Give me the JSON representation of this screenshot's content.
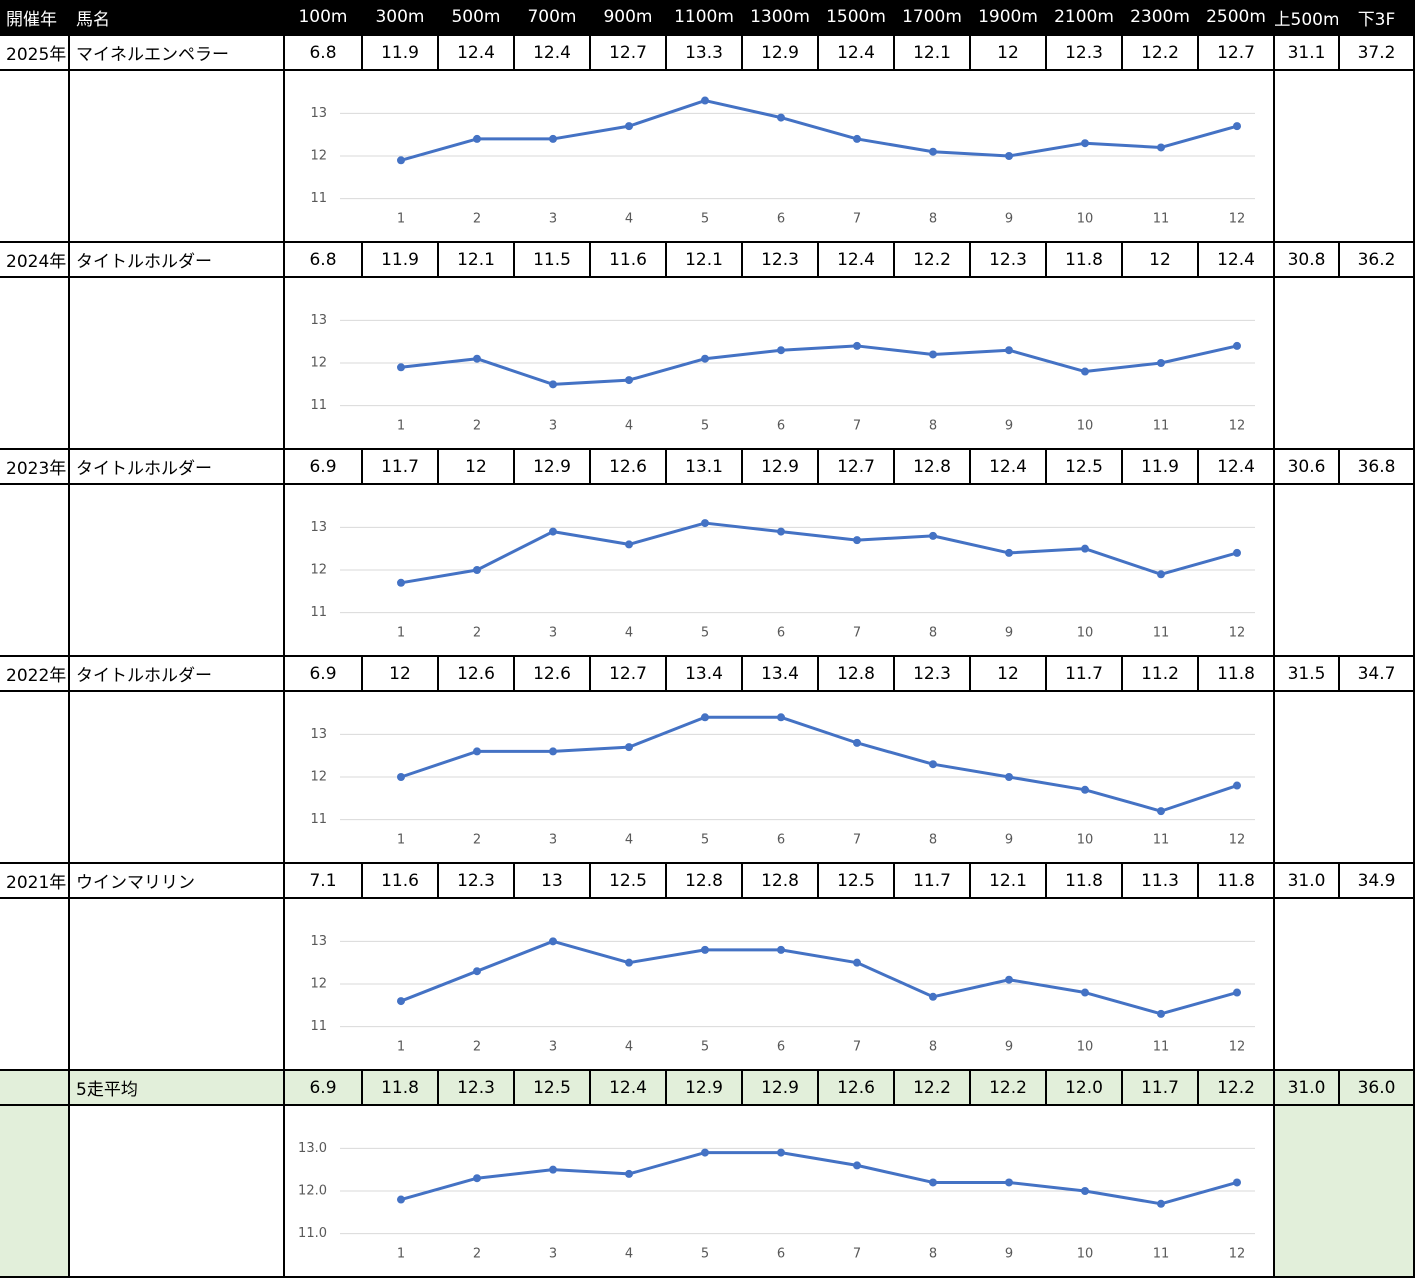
{
  "table": {
    "header": [
      "開催年",
      "馬名",
      "100m",
      "300m",
      "500m",
      "700m",
      "900m",
      "1100m",
      "1300m",
      "1500m",
      "1700m",
      "1900m",
      "2100m",
      "2300m",
      "2500m",
      "上500m",
      "下3F"
    ],
    "blocks": [
      {
        "year": "2025年",
        "horse": "マイネルエンペラー",
        "splits": [
          6.8,
          11.9,
          12.4,
          12.4,
          12.7,
          13.3,
          12.9,
          12.4,
          12.1,
          12,
          12.3,
          12.2,
          12.7
        ],
        "first500": 31.1,
        "last3f": 37.2,
        "chart": {
          "type": "line",
          "categories": [
            1,
            2,
            3,
            4,
            5,
            6,
            7,
            8,
            9,
            10,
            11,
            12
          ],
          "ylim": [
            10.5,
            13.5
          ],
          "yticks": [
            11,
            12,
            13
          ],
          "color": "#4472c4",
          "grid": true
        }
      },
      {
        "year": "2024年",
        "horse": "タイトルホルダー",
        "splits": [
          6.8,
          11.9,
          12.1,
          11.5,
          11.6,
          12.1,
          12.3,
          12.4,
          12.2,
          12.3,
          11.8,
          12,
          12.4
        ],
        "first500": 30.8,
        "last3f": 36.2,
        "chart": {
          "type": "line",
          "categories": [
            1,
            2,
            3,
            4,
            5,
            6,
            7,
            8,
            9,
            10,
            11,
            12
          ],
          "ylim": [
            10.5,
            13.5
          ],
          "yticks": [
            11,
            12,
            13
          ],
          "color": "#4472c4",
          "grid": true
        }
      },
      {
        "year": "2023年",
        "horse": "タイトルホルダー",
        "splits": [
          6.9,
          11.7,
          12,
          12.9,
          12.6,
          13.1,
          12.9,
          12.7,
          12.8,
          12.4,
          12.5,
          11.9,
          12.4
        ],
        "first500": 30.6,
        "last3f": 36.8,
        "chart": {
          "type": "line",
          "categories": [
            1,
            2,
            3,
            4,
            5,
            6,
            7,
            8,
            9,
            10,
            11,
            12
          ],
          "ylim": [
            10.5,
            13.5
          ],
          "yticks": [
            11,
            12,
            13
          ],
          "color": "#4472c4",
          "grid": true
        }
      },
      {
        "year": "2022年",
        "horse": "タイトルホルダー",
        "splits": [
          6.9,
          12,
          12.6,
          12.6,
          12.7,
          13.4,
          13.4,
          12.8,
          12.3,
          12,
          11.7,
          11.2,
          11.8
        ],
        "first500": 31.5,
        "last3f": 34.7,
        "chart": {
          "type": "line",
          "categories": [
            1,
            2,
            3,
            4,
            5,
            6,
            7,
            8,
            9,
            10,
            11,
            12
          ],
          "ylim": [
            10.5,
            13.5
          ],
          "yticks": [
            11,
            12,
            13
          ],
          "color": "#4472c4",
          "grid": true
        }
      },
      {
        "year": "2021年",
        "horse": "ウインマリリン",
        "splits": [
          7.1,
          11.6,
          12.3,
          13,
          12.5,
          12.8,
          12.8,
          12.5,
          11.7,
          12.1,
          11.8,
          11.3,
          11.8
        ],
        "first500": {
          "value": 31,
          "label": "31.0"
        },
        "last3f": 34.9,
        "chart": {
          "type": "line",
          "categories": [
            1,
            2,
            3,
            4,
            5,
            6,
            7,
            8,
            9,
            10,
            11,
            12
          ],
          "ylim": [
            10.5,
            13.5
          ],
          "yticks": [
            11,
            12,
            13
          ],
          "color": "#4472c4",
          "grid": true
        }
      },
      {
        "horse": "5走平均",
        "splits": [
          6.9,
          11.8,
          12.3,
          12.5,
          12.4,
          12.9,
          12.9,
          12.6,
          12.2,
          12.2,
          {
            "value": 12,
            "label": "12.0"
          },
          11.7,
          12.2
        ],
        "first500": {
          "value": 31,
          "label": "31.0"
        },
        "last3f": {
          "value": 36,
          "label": "36.0"
        },
        "chart": {
          "type": "line",
          "categories": [
            1,
            2,
            3,
            4,
            5,
            6,
            7,
            8,
            9,
            10,
            11,
            12
          ],
          "ylim": [
            10.5,
            13.5
          ],
          "yticks": [
            {
              "value": 11,
              "label": "11.0"
            },
            {
              "value": 12,
              "label": "12.0"
            },
            {
              "value": 13,
              "label": "13.0"
            }
          ],
          "color": "#4472c4",
          "grid": true
        }
      }
    ]
  }
}
